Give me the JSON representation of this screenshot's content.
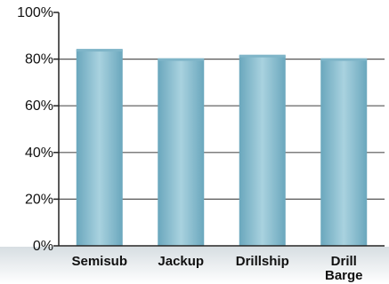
{
  "chart_data": {
    "type": "bar",
    "categories": [
      "Semisub",
      "Jackup",
      "Drillship",
      "Drill Barge"
    ],
    "values": [
      84,
      80,
      81.5,
      80
    ],
    "y_ticks": [
      "100%",
      "80%",
      "60%",
      "40%",
      "20%",
      "0%"
    ],
    "ylim": [
      0,
      100
    ],
    "grid": true,
    "legend": "none",
    "title": "",
    "xlabel": "",
    "ylabel": "",
    "colors": {
      "bar_edge": "#6aa7bd",
      "bar_mid": "#a9d2df",
      "bar_top": "#7fb5c8",
      "grid": "#555555",
      "axis": "#222222"
    }
  }
}
